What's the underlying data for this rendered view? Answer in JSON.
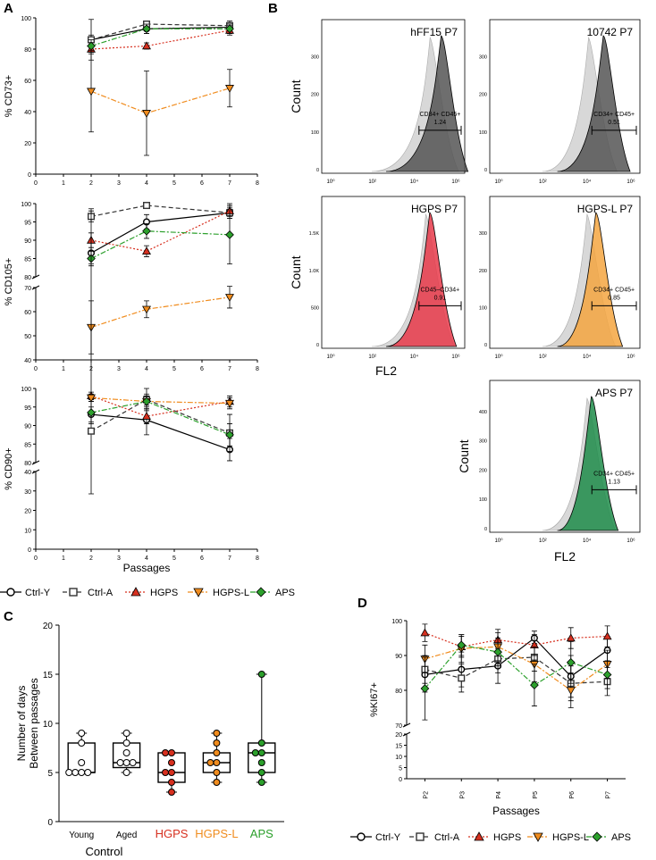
{
  "panel_letters": {
    "A": "A",
    "B": "B",
    "C": "C",
    "D": "D"
  },
  "legend": [
    "Ctrl-Y",
    "Ctrl-A",
    "HGPS",
    "HGPS-L",
    "APS"
  ],
  "series_colors": {
    "Ctrl-Y": "#000000",
    "Ctrl-A": "#333333",
    "HGPS": "#d7301f",
    "HGPS-L": "#f08c1e",
    "APS": "#2ca02c"
  },
  "series_markers": {
    "Ctrl-Y": "circle-open",
    "Ctrl-A": "square-open",
    "HGPS": "triangle-up-filled",
    "HGPS-L": "triangle-down-filled",
    "APS": "diamond-filled"
  },
  "chart_data": [
    {
      "panel": "A",
      "type": "line",
      "ylabel": "% CD73+",
      "x": [
        2,
        4,
        7
      ],
      "xlim": [
        0,
        8
      ],
      "xticks": [
        "0",
        "1",
        "2",
        "3",
        "4",
        "5",
        "6",
        "7",
        "8"
      ],
      "ylim": [
        0,
        100
      ],
      "yticks": [
        "0",
        "20",
        "40",
        "60",
        "80",
        "100"
      ],
      "series": [
        {
          "name": "Ctrl-Y",
          "values": [
            86,
            93,
            94
          ],
          "err": [
            13,
            3,
            4
          ]
        },
        {
          "name": "Ctrl-A",
          "values": [
            86,
            96,
            95
          ],
          "err": [
            3,
            2,
            2
          ]
        },
        {
          "name": "HGPS",
          "values": [
            80,
            82,
            92
          ],
          "err": [
            3,
            2,
            3
          ]
        },
        {
          "name": "HGPS-L",
          "values": [
            53,
            39,
            55
          ],
          "err": [
            26,
            27,
            12
          ]
        },
        {
          "name": "APS",
          "values": [
            82,
            93,
            93
          ],
          "err": [
            4,
            3,
            3
          ]
        }
      ]
    },
    {
      "panel": "A",
      "type": "line",
      "ylabel": "% CD105+",
      "x": [
        2,
        4,
        7
      ],
      "xlim": [
        0,
        8
      ],
      "xticks": [
        "0",
        "1",
        "2",
        "3",
        "4",
        "5",
        "6",
        "7",
        "8"
      ],
      "ylim_upper": [
        80,
        100
      ],
      "yticks_upper": [
        "80",
        "85",
        "90",
        "95",
        "100"
      ],
      "ylim_lower": [
        40,
        70
      ],
      "yticks_lower": [
        "40",
        "50",
        "60",
        "70"
      ],
      "axis_break": true,
      "series": [
        {
          "name": "Ctrl-Y",
          "values": [
            86.5,
            95,
            97.5
          ],
          "err": [
            3,
            2,
            1.5
          ]
        },
        {
          "name": "Ctrl-A",
          "values": [
            96.5,
            99.5,
            97.5
          ],
          "err": [
            1.5,
            0.8,
            1
          ]
        },
        {
          "name": "HGPS",
          "values": [
            90,
            87,
            98
          ],
          "err": [
            2,
            1.5,
            2
          ]
        },
        {
          "name": "HGPS-L",
          "values": [
            53.5,
            61,
            66
          ],
          "err": [
            11,
            3.5,
            4.5
          ]
        },
        {
          "name": "APS",
          "values": [
            85,
            92.5,
            91.5
          ],
          "err": [
            2,
            2,
            8
          ]
        }
      ]
    },
    {
      "panel": "A",
      "type": "line",
      "ylabel": "% CD90+",
      "xlabel": "Passages",
      "x": [
        2,
        4,
        7
      ],
      "xlim": [
        0,
        8
      ],
      "xticks": [
        "0",
        "1",
        "2",
        "3",
        "4",
        "5",
        "6",
        "7",
        "8"
      ],
      "ylim_upper": [
        80,
        100
      ],
      "yticks_upper": [
        "80",
        "85",
        "90",
        "95",
        "100"
      ],
      "ylim_lower": [
        0,
        40
      ],
      "yticks_lower": [
        "0",
        "10",
        "20",
        "30",
        "40"
      ],
      "axis_break": true,
      "series": [
        {
          "name": "Ctrl-Y",
          "values": [
            93,
            91.5,
            83.5
          ],
          "err": [
            2,
            4,
            3
          ]
        },
        {
          "name": "Ctrl-A",
          "values": [
            88.5,
            97,
            88
          ],
          "err": [
            60,
            3,
            5
          ]
        },
        {
          "name": "HGPS",
          "values": [
            98,
            92.5,
            96.5
          ],
          "err": [
            1,
            2,
            1.5
          ]
        },
        {
          "name": "HGPS-L",
          "values": [
            97.5,
            96.5,
            96
          ],
          "err": [
            1,
            1.5,
            1.5
          ]
        },
        {
          "name": "APS",
          "values": [
            93.5,
            96.5,
            87.5
          ],
          "err": [
            3,
            2,
            3
          ]
        }
      ]
    },
    {
      "panel": "C",
      "type": "box",
      "ylabel_lines": [
        "Number of days",
        "Between passages"
      ],
      "xlabel": "Control",
      "ylim": [
        0,
        20
      ],
      "yticks": [
        "0",
        "5",
        "10",
        "15",
        "20"
      ],
      "categories": [
        "Young",
        "Aged",
        "HGPS",
        "HGPS-L",
        "APS"
      ],
      "category_colors": [
        "#000000",
        "#000000",
        "#d7301f",
        "#f08c1e",
        "#2ca02c"
      ],
      "boxes": [
        {
          "name": "Young",
          "min": 5,
          "q1": 5,
          "median": 5,
          "q3": 8,
          "max": 9,
          "points": [
            5,
            5,
            5,
            5,
            6,
            8,
            9
          ]
        },
        {
          "name": "Aged",
          "min": 5,
          "q1": 5.5,
          "median": 6,
          "q3": 8,
          "max": 9,
          "points": [
            5,
            6,
            6,
            6,
            7,
            8,
            9
          ]
        },
        {
          "name": "HGPS",
          "min": 3,
          "q1": 4,
          "median": 5,
          "q3": 7,
          "max": 7,
          "points": [
            3,
            4,
            5,
            5,
            6,
            7,
            7
          ]
        },
        {
          "name": "HGPS-L",
          "min": 4,
          "q1": 5,
          "median": 6,
          "q3": 7,
          "max": 9,
          "points": [
            4,
            5,
            6,
            6,
            7,
            8,
            9
          ]
        },
        {
          "name": "APS",
          "min": 4,
          "q1": 5,
          "median": 7,
          "q3": 8,
          "max": 15,
          "points": [
            4,
            5,
            6,
            7,
            7,
            8,
            15
          ]
        }
      ]
    },
    {
      "panel": "D",
      "type": "line",
      "ylabel": "%KI67+",
      "xlabel": "Passages",
      "categories": [
        "P2",
        "P3",
        "P4",
        "P5",
        "P6",
        "P7"
      ],
      "ylim_upper": [
        70,
        100
      ],
      "yticks_upper": [
        "70",
        "80",
        "90",
        "100"
      ],
      "ylim_lower": [
        0,
        20
      ],
      "yticks_lower": [
        "0",
        "5",
        "10",
        "15",
        "20"
      ],
      "axis_break": true,
      "series": [
        {
          "name": "Ctrl-Y",
          "values": [
            84.5,
            86,
            87,
            95,
            84,
            91.5
          ],
          "err": [
            5,
            5,
            5,
            2,
            6,
            4
          ]
        },
        {
          "name": "Ctrl-A",
          "values": [
            86,
            83.5,
            89,
            89.5,
            82,
            82.5
          ],
          "err": [
            4,
            4,
            4,
            4,
            5,
            4
          ]
        },
        {
          "name": "HGPS",
          "values": [
            96.5,
            92.5,
            94.5,
            93,
            95,
            95.5
          ],
          "err": [
            2.5,
            3,
            3,
            3,
            3,
            3
          ]
        },
        {
          "name": "HGPS-L",
          "values": [
            89,
            92,
            92.5,
            87.5,
            80,
            87.5
          ],
          "err": [
            4,
            4,
            4,
            5,
            5,
            4
          ]
        },
        {
          "name": "APS",
          "values": [
            80.5,
            93,
            91,
            81.5,
            88,
            84.5
          ],
          "err": [
            9,
            3,
            4,
            6,
            6,
            4
          ]
        }
      ]
    }
  ],
  "flow": {
    "axis_label": "FL2",
    "ylabel": "Count",
    "histograms": [
      {
        "title": "hFF15 P7",
        "gate_label": [
          "CD34+ CD45+",
          "1.24"
        ],
        "yticks": [
          "0",
          "100",
          "200",
          "300"
        ],
        "fill": "#555555"
      },
      {
        "title": "10742 P7",
        "gate_label": [
          "CD34+ CD45+",
          "0.51"
        ],
        "yticks": [
          "0",
          "100",
          "200",
          "300"
        ],
        "fill": "#555555"
      },
      {
        "title": "HGPS P7",
        "gate_label": [
          "CD45–CD34+",
          "0.91"
        ],
        "yticks": [
          "0",
          "500",
          "1.0K",
          "1.5K"
        ],
        "fill": "#e8394a"
      },
      {
        "title": "HGPS-L P7",
        "gate_label": [
          "CD34+ CD45+",
          "0.85"
        ],
        "yticks": [
          "0",
          "100",
          "200",
          "300"
        ],
        "fill": "#f4a641"
      },
      {
        "title": "APS P7",
        "gate_label": [
          "CD34+ CD45+",
          "1.13"
        ],
        "yticks": [
          "0",
          "100",
          "200",
          "300",
          "400"
        ],
        "fill": "#1e8c4a"
      }
    ],
    "xtick_labels": [
      "10⁰",
      "10²",
      "10⁴",
      "10⁶"
    ]
  }
}
